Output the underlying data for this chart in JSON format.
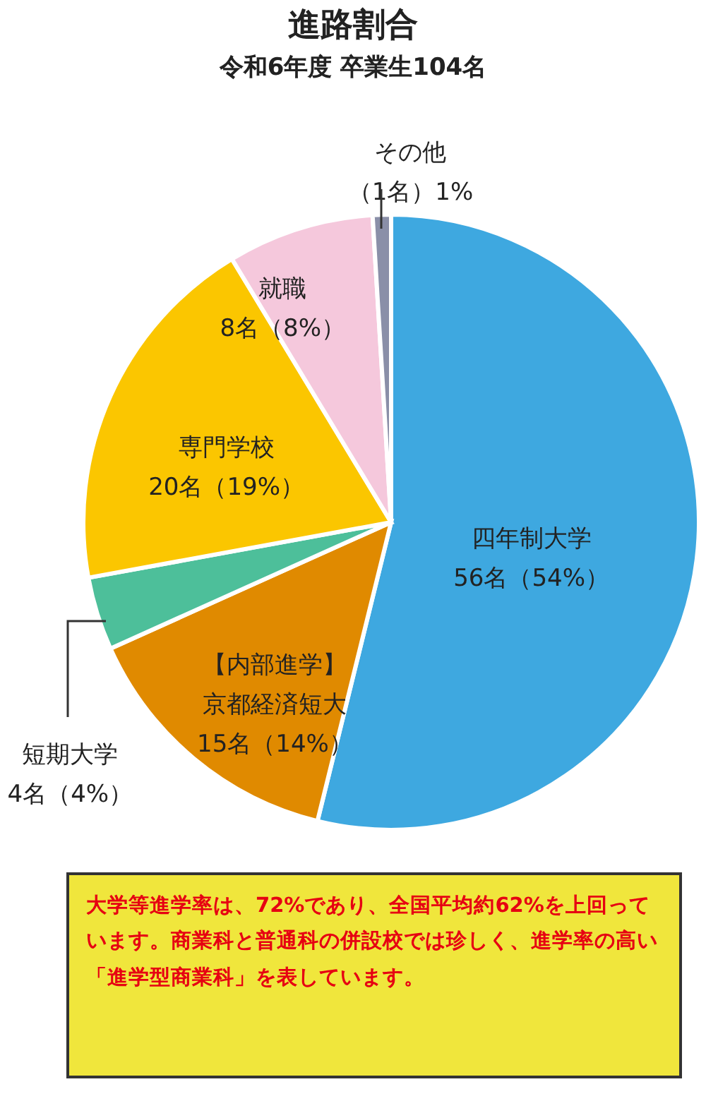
{
  "chart_data": {
    "type": "pie",
    "title": "進路割合",
    "subtitle": "令和6年度 卒業生104名",
    "categories": [
      "四年制大学",
      "【内部進学】京都経済短大",
      "短期大学",
      "専門学校",
      "就職",
      "その他"
    ],
    "values": [
      56,
      15,
      4,
      20,
      8,
      1
    ],
    "value_labels": [
      "56名（54%）",
      "15名（14%）",
      "4名（4%）",
      "20名（19%）",
      "8名（8%）",
      "（1名）1%"
    ],
    "colors": [
      "#3ea8e0",
      "#e08a00",
      "#4dbf9a",
      "#fbc600",
      "#f5c8dc",
      "#8a8fa8"
    ],
    "annotations": [
      "大学等進学率は、72%であり、全国平均約62%を上回っています。商業科と普通科の併設校では珍しく、進学率の高い「進学型商業科」を表しています。"
    ]
  }
}
